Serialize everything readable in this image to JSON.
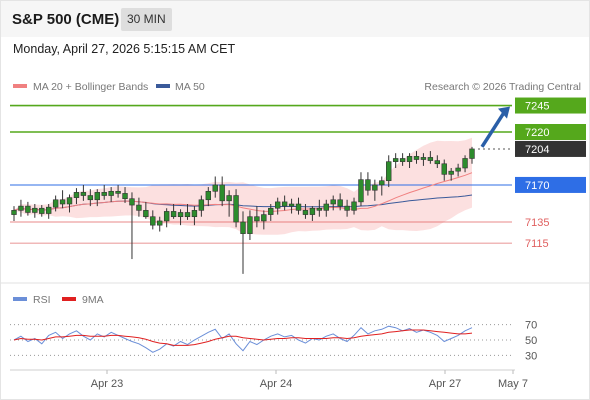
{
  "header": {
    "title": "S&P 500 (CME)",
    "interval": "30 MIN",
    "datetime": "Monday, April 27, 2026 5:15:15 AM CET"
  },
  "legend": {
    "ma20_label": "MA 20 + Bollinger Bands",
    "ma50_label": "MA 50",
    "copyright": "Research © 2026 Trading Central",
    "rsi_label": "RSI",
    "rsi_ma_label": "9MA"
  },
  "colors": {
    "up": "#2d8c2d",
    "down": "#2d8c2d",
    "ma20": "#f08080",
    "ma50": "#3a5a9a",
    "bollinger": "#fbd5d5",
    "resistance": "#55a81c",
    "support": "#2e6ee6",
    "pivot_support": "#e06060",
    "last": "#333333",
    "arrow": "#2a5fa8",
    "rsi": "#6b8fd8",
    "rsi_ma": "#e02020"
  },
  "chart_data": {
    "type": "candlestick",
    "interval": "30 MIN",
    "ylim": [
      7084,
      7254
    ],
    "x_ticks": [
      "Apr 23",
      "Apr 24",
      "Apr 27",
      "May 7"
    ],
    "last_price": 7204,
    "levels": [
      {
        "value": 7245,
        "label": "7245",
        "kind": "resistance",
        "style": "badge"
      },
      {
        "value": 7220,
        "label": "7220",
        "kind": "resistance",
        "style": "badge"
      },
      {
        "value": 7204,
        "label": "7204",
        "kind": "last",
        "style": "badge"
      },
      {
        "value": 7170,
        "label": "7170",
        "kind": "support",
        "style": "badge"
      },
      {
        "value": 7135,
        "label": "7135",
        "kind": "pivot_support",
        "style": "text"
      },
      {
        "value": 7115,
        "label": "7115",
        "kind": "pivot_support",
        "style": "text"
      }
    ],
    "forecast_arrow": {
      "from": 7206,
      "to": 7244
    },
    "candles": [
      [
        7142,
        7150,
        7136,
        7146
      ],
      [
        7146,
        7156,
        7140,
        7150
      ],
      [
        7150,
        7154,
        7141,
        7144
      ],
      [
        7144,
        7152,
        7139,
        7148
      ],
      [
        7148,
        7151,
        7140,
        7143
      ],
      [
        7143,
        7152,
        7138,
        7149
      ],
      [
        7149,
        7160,
        7145,
        7156
      ],
      [
        7156,
        7165,
        7148,
        7152
      ],
      [
        7152,
        7161,
        7144,
        7158
      ],
      [
        7158,
        7167,
        7152,
        7163
      ],
      [
        7163,
        7170,
        7155,
        7160
      ],
      [
        7160,
        7166,
        7150,
        7156
      ],
      [
        7156,
        7166,
        7150,
        7163
      ],
      [
        7163,
        7170,
        7156,
        7160
      ],
      [
        7160,
        7168,
        7154,
        7164
      ],
      [
        7164,
        7170,
        7158,
        7162
      ],
      [
        7162,
        7168,
        7153,
        7157
      ],
      [
        7157,
        7163,
        7100,
        7151
      ],
      [
        7151,
        7158,
        7140,
        7146
      ],
      [
        7146,
        7154,
        7138,
        7140
      ],
      [
        7140,
        7146,
        7128,
        7132
      ],
      [
        7132,
        7140,
        7126,
        7136
      ],
      [
        7136,
        7148,
        7130,
        7145
      ],
      [
        7145,
        7152,
        7138,
        7140
      ],
      [
        7140,
        7147,
        7132,
        7144
      ],
      [
        7144,
        7152,
        7137,
        7140
      ],
      [
        7140,
        7150,
        7132,
        7146
      ],
      [
        7146,
        7160,
        7140,
        7156
      ],
      [
        7156,
        7168,
        7150,
        7164
      ],
      [
        7164,
        7178,
        7158,
        7170
      ],
      [
        7170,
        7178,
        7150,
        7155
      ],
      [
        7155,
        7165,
        7140,
        7160
      ],
      [
        7160,
        7166,
        7130,
        7135
      ],
      [
        7135,
        7145,
        7086,
        7124
      ],
      [
        7124,
        7146,
        7118,
        7140
      ],
      [
        7140,
        7150,
        7130,
        7136
      ],
      [
        7136,
        7146,
        7128,
        7142
      ],
      [
        7142,
        7152,
        7136,
        7148
      ],
      [
        7148,
        7158,
        7142,
        7154
      ],
      [
        7154,
        7160,
        7146,
        7150
      ],
      [
        7150,
        7157,
        7143,
        7152
      ],
      [
        7152,
        7158,
        7142,
        7146
      ],
      [
        7146,
        7152,
        7138,
        7142
      ],
      [
        7142,
        7150,
        7136,
        7148
      ],
      [
        7148,
        7156,
        7140,
        7146
      ],
      [
        7146,
        7156,
        7140,
        7152
      ],
      [
        7152,
        7160,
        7146,
        7156
      ],
      [
        7156,
        7162,
        7146,
        7150
      ],
      [
        7150,
        7156,
        7140,
        7146
      ],
      [
        7146,
        7158,
        7142,
        7154
      ],
      [
        7154,
        7182,
        7150,
        7175
      ],
      [
        7175,
        7182,
        7160,
        7165
      ],
      [
        7165,
        7175,
        7155,
        7170
      ],
      [
        7170,
        7178,
        7160,
        7174
      ],
      [
        7174,
        7198,
        7168,
        7192
      ],
      [
        7192,
        7200,
        7186,
        7195
      ],
      [
        7195,
        7200,
        7188,
        7192
      ],
      [
        7192,
        7200,
        7186,
        7197
      ],
      [
        7197,
        7202,
        7190,
        7194
      ],
      [
        7194,
        7200,
        7188,
        7196
      ],
      [
        7196,
        7202,
        7190,
        7193
      ],
      [
        7193,
        7198,
        7186,
        7190
      ],
      [
        7190,
        7194,
        7174,
        7180
      ],
      [
        7180,
        7186,
        7174,
        7183
      ],
      [
        7183,
        7190,
        7178,
        7186
      ],
      [
        7186,
        7198,
        7182,
        7195
      ],
      [
        7195,
        7206,
        7190,
        7204
      ]
    ],
    "rsi": {
      "label": "RSI",
      "ma_label": "9MA",
      "ylim": [
        20,
        80
      ],
      "ticks": [
        70,
        50,
        30
      ],
      "values": [
        50,
        55,
        48,
        52,
        45,
        56,
        60,
        52,
        58,
        62,
        55,
        50,
        58,
        54,
        60,
        56,
        52,
        48,
        45,
        40,
        34,
        38,
        45,
        42,
        48,
        44,
        50,
        55,
        60,
        64,
        52,
        58,
        45,
        36,
        48,
        44,
        50,
        55,
        58,
        54,
        56,
        50,
        46,
        52,
        50,
        55,
        58,
        52,
        48,
        56,
        66,
        58,
        62,
        64,
        68,
        66,
        62,
        65,
        60,
        63,
        60,
        56,
        48,
        52,
        56,
        62,
        66
      ],
      "ma_values": [
        50,
        52,
        51,
        51,
        50,
        52,
        54,
        54,
        55,
        56,
        56,
        55,
        55,
        55,
        56,
        56,
        55,
        54,
        53,
        51,
        48,
        46,
        45,
        43,
        43,
        43,
        44,
        46,
        48,
        51,
        53,
        55,
        55,
        53,
        52,
        51,
        50,
        51,
        52,
        52,
        53,
        53,
        52,
        52,
        52,
        52,
        53,
        53,
        52,
        53,
        55,
        56,
        57,
        58,
        60,
        61,
        62,
        63,
        63,
        63,
        62,
        61,
        60,
        59,
        58,
        58,
        59
      ]
    }
  }
}
